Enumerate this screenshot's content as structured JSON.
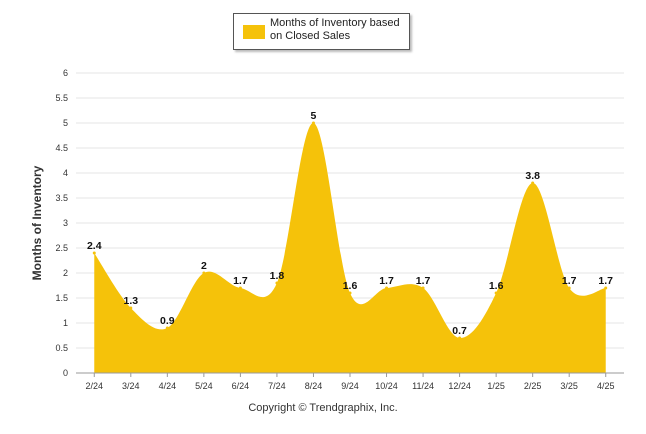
{
  "legend": {
    "label": "Months of Inventory based on Closed Sales"
  },
  "footer": {
    "copyright": "Copyright © Trendgraphix, Inc."
  },
  "colors": {
    "area": "#f5c20a",
    "grid": "#e6e6e6",
    "axis": "#999999"
  },
  "chart_data": {
    "type": "area",
    "title": "",
    "xlabel": "",
    "ylabel": "Months of Inventory",
    "categories": [
      "2/24",
      "3/24",
      "4/24",
      "5/24",
      "6/24",
      "7/24",
      "8/24",
      "9/24",
      "10/24",
      "11/24",
      "12/24",
      "1/25",
      "2/25",
      "3/25",
      "4/25"
    ],
    "series": [
      {
        "name": "Months of Inventory based on Closed Sales",
        "values": [
          2.4,
          1.3,
          0.9,
          2,
          1.7,
          1.8,
          5,
          1.6,
          1.7,
          1.7,
          0.7,
          1.6,
          3.8,
          1.7,
          1.7
        ],
        "labels": [
          "2.4",
          "1.3",
          "0.9",
          "2",
          "1.7",
          "1.8",
          "5",
          "1.6",
          "1.7",
          "1.7",
          "0.7",
          "1.6",
          "3.8",
          "1.7",
          "1.7"
        ]
      }
    ],
    "ylim": [
      0,
      6
    ],
    "yticks": [
      "0",
      "0.5",
      "1",
      "1.5",
      "2",
      "2.5",
      "3",
      "3.5",
      "4",
      "4.5",
      "5",
      "5.5",
      "6"
    ],
    "grid": true,
    "legend_position": "top-center"
  }
}
